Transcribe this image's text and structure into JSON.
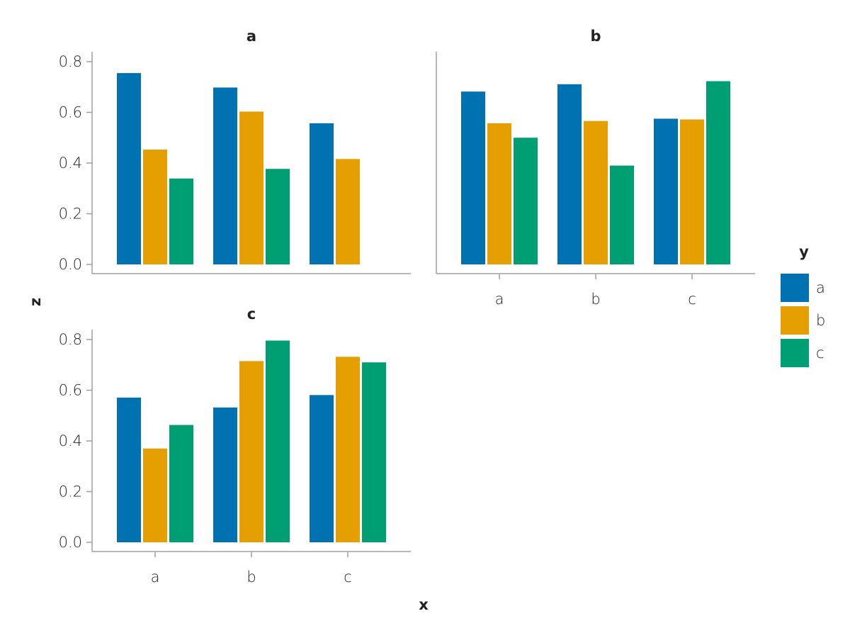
{
  "chart_data": {
    "type": "bar",
    "x_title": "x",
    "y_title": "z",
    "legend": {
      "title": "y",
      "placement": "right",
      "entries": [
        {
          "label": "a",
          "color": "#0072B2"
        },
        {
          "label": "b",
          "color": "#E69F00"
        },
        {
          "label": "c",
          "color": "#009E73"
        }
      ]
    },
    "categories": [
      "a",
      "b",
      "c"
    ],
    "ylim": [
      0,
      0.84
    ],
    "yticks": [
      "0.0",
      "0.2",
      "0.4",
      "0.6",
      "0.8"
    ],
    "ytick_values": [
      0,
      0.2,
      0.4,
      0.6,
      0.8
    ],
    "grid": false,
    "facets": [
      {
        "title": "a",
        "series": [
          {
            "name": "a",
            "values": [
              0.755,
              0.698,
              0.557
            ]
          },
          {
            "name": "b",
            "values": [
              0.453,
              0.603,
              0.416
            ]
          },
          {
            "name": "c",
            "values": [
              0.339,
              0.377,
              null
            ]
          }
        ]
      },
      {
        "title": "b",
        "series": [
          {
            "name": "a",
            "values": [
              0.682,
              0.711,
              0.575
            ]
          },
          {
            "name": "b",
            "values": [
              0.557,
              0.566,
              0.572
            ]
          },
          {
            "name": "c",
            "values": [
              0.5,
              0.39,
              0.723
            ]
          }
        ]
      },
      {
        "title": "c",
        "series": [
          {
            "name": "a",
            "values": [
              0.571,
              0.532,
              0.581
            ]
          },
          {
            "name": "b",
            "values": [
              0.37,
              0.715,
              0.732
            ]
          },
          {
            "name": "c",
            "values": [
              0.463,
              0.796,
              0.71
            ]
          }
        ]
      }
    ]
  }
}
